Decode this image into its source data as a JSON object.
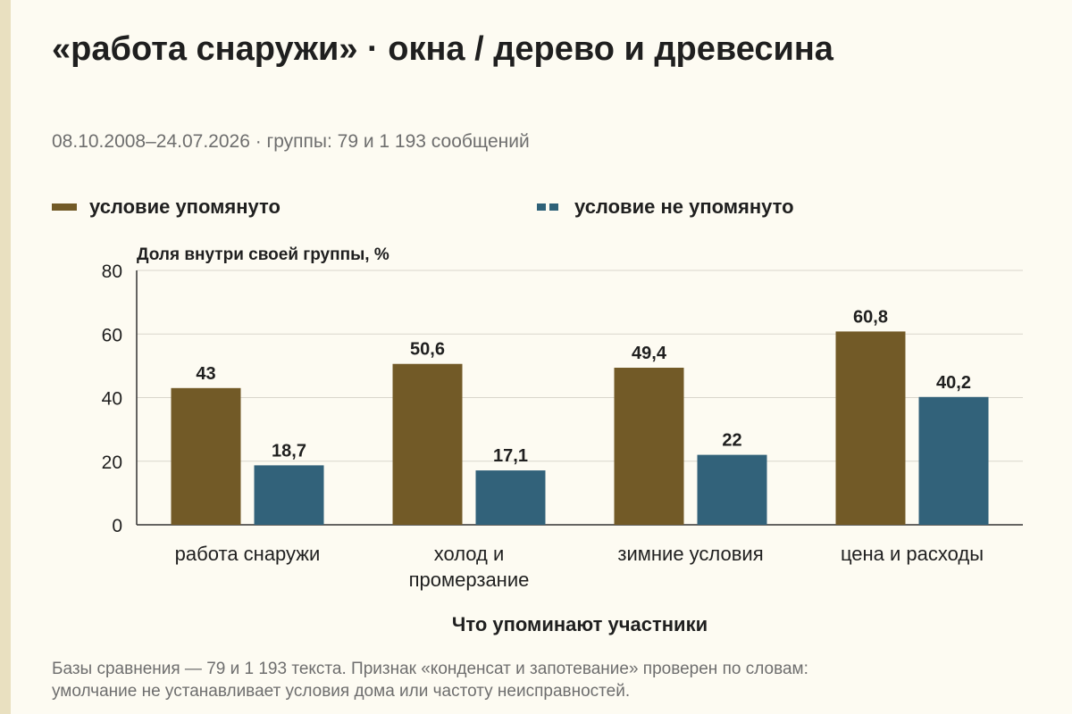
{
  "title": "«работа снаружи» · окна / дерево и древесина",
  "subtitle": "08.10.2008–24.07.2026 · группы: 79 и 1 193 сообщений",
  "footnote_line1": "Базы сравнения — 79 и 1 193 текста. Признак «конденсат и запотевание» проверен по словам:",
  "footnote_line2": "умолчание не устанавливает условия дома или частоту неисправностей.",
  "colors": {
    "mentioned": "#725a27",
    "not_mentioned": "#32627a",
    "grid": "#d9d6cc",
    "axis": "#333333"
  },
  "chart_data": {
    "type": "bar",
    "ylabel": "Доля внутри своей группы, %",
    "xlabel": "Что упоминают участники",
    "ylim": [
      0,
      80
    ],
    "yticks": [
      0,
      20,
      40,
      60,
      80
    ],
    "grid": true,
    "legend_position": "top",
    "categories": [
      [
        "работа снаружи"
      ],
      [
        "холод и",
        "промерзание"
      ],
      [
        "зимние условия"
      ],
      [
        "цена и расходы"
      ]
    ],
    "series": [
      {
        "name": "условие упомянуто",
        "color": "#725a27",
        "values": [
          43,
          50.6,
          49.4,
          60.8
        ],
        "labels": [
          "43",
          "50,6",
          "49,4",
          "60,8"
        ]
      },
      {
        "name": "условие не упомянуто",
        "color": "#32627a",
        "values": [
          18.7,
          17.1,
          22,
          40.2
        ],
        "labels": [
          "18,7",
          "17,1",
          "22",
          "40,2"
        ]
      }
    ]
  }
}
